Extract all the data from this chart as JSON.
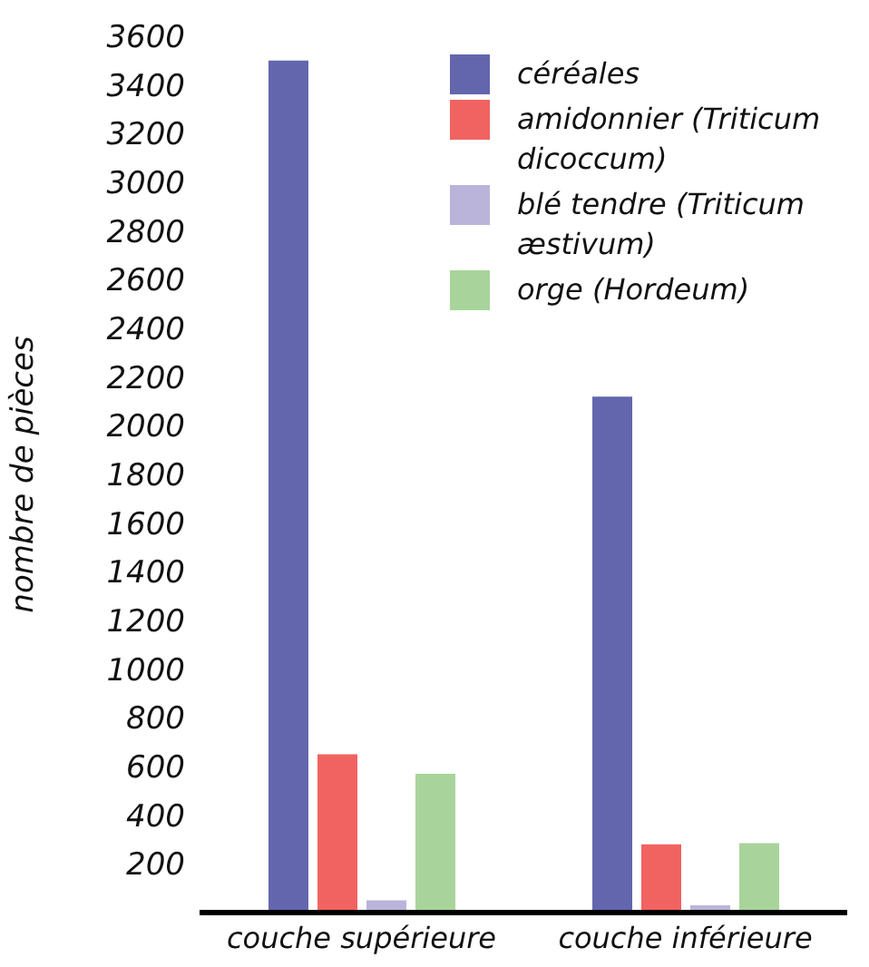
{
  "chart_data": {
    "type": "bar",
    "ylabel": "nombre de pièces",
    "categories": [
      "couche supérieure",
      "couche inférieure"
    ],
    "series": [
      {
        "name": "céréales",
        "color": "#6366ad",
        "values": [
          3500,
          2120
        ]
      },
      {
        "name": "amidonnier (Triticum dicoccum)",
        "color": "#f16360",
        "values": [
          650,
          280
        ]
      },
      {
        "name": "blé tendre (Triticum æstivum)",
        "color": "#bbb4da",
        "values": [
          50,
          30
        ]
      },
      {
        "name": "orge (Hordeum)",
        "color": "#a8d49b",
        "values": [
          570,
          285
        ]
      }
    ],
    "ylim": [
      0,
      3600
    ],
    "yticks": [
      200,
      400,
      600,
      800,
      1000,
      1200,
      1400,
      1600,
      1800,
      2000,
      2200,
      2400,
      2600,
      2800,
      3000,
      3200,
      3400,
      3600
    ],
    "grid": false,
    "legend": "top right"
  }
}
